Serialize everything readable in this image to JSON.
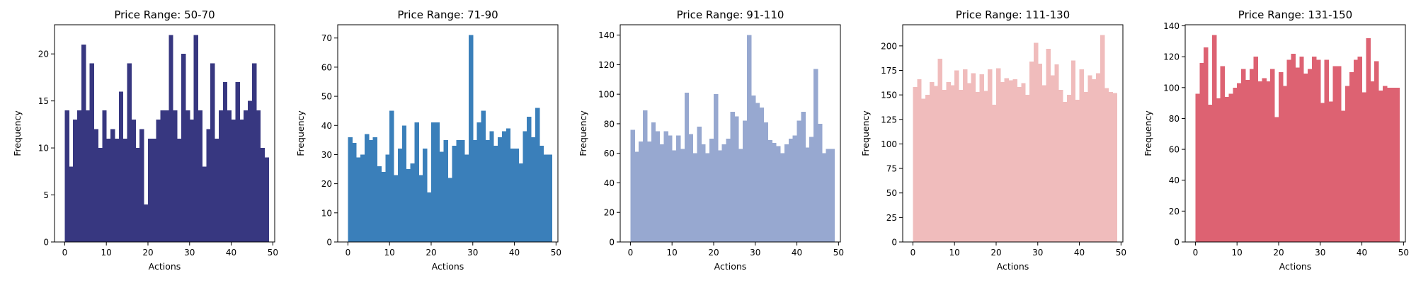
{
  "chart_data": [
    {
      "type": "bar",
      "title": "Price Range: 50-70",
      "xlabel": "Actions",
      "ylabel": "Frequency",
      "color": "#373780",
      "x": [
        0,
        1,
        2,
        3,
        4,
        5,
        6,
        7,
        8,
        9,
        10,
        11,
        12,
        13,
        14,
        15,
        16,
        17,
        18,
        19,
        20,
        21,
        22,
        23,
        24,
        25,
        26,
        27,
        28,
        29,
        30,
        31,
        32,
        33,
        34,
        35,
        36,
        37,
        38,
        39,
        40,
        41,
        42,
        43,
        44,
        45,
        46,
        47,
        48,
        49
      ],
      "values": [
        14,
        8,
        13,
        14,
        21,
        14,
        19,
        12,
        10,
        14,
        11,
        12,
        11,
        16,
        11,
        19,
        13,
        10,
        12,
        4,
        11,
        11,
        13,
        14,
        14,
        22,
        14,
        11,
        20,
        14,
        13,
        22,
        14,
        8,
        12,
        19,
        11,
        14,
        17,
        14,
        13,
        17,
        13,
        14,
        15,
        19,
        14,
        10,
        9,
        0
      ],
      "xlim": [
        -2.45,
        50.45
      ],
      "ylim": [
        0,
        23.1
      ],
      "xticks": [
        0,
        10,
        20,
        30,
        40,
        50
      ],
      "yticks": [
        0,
        5,
        10,
        15,
        20
      ]
    },
    {
      "type": "bar",
      "title": "Price Range: 71-90",
      "xlabel": "Actions",
      "ylabel": "Frequency",
      "color": "#3a7fba",
      "x": [
        0,
        1,
        2,
        3,
        4,
        5,
        6,
        7,
        8,
        9,
        10,
        11,
        12,
        13,
        14,
        15,
        16,
        17,
        18,
        19,
        20,
        21,
        22,
        23,
        24,
        25,
        26,
        27,
        28,
        29,
        30,
        31,
        32,
        33,
        34,
        35,
        36,
        37,
        38,
        39,
        40,
        41,
        42,
        43,
        44,
        45,
        46,
        47,
        48,
        49
      ],
      "values": [
        36,
        34,
        29,
        30,
        37,
        35,
        36,
        26,
        24,
        30,
        45,
        23,
        32,
        40,
        25,
        27,
        41,
        23,
        32,
        17,
        41,
        41,
        31,
        35,
        22,
        33,
        35,
        35,
        30,
        71,
        35,
        41,
        45,
        35,
        38,
        33,
        36,
        38,
        39,
        32,
        32,
        27,
        38,
        43,
        36,
        46,
        33,
        30,
        30,
        0
      ],
      "xlim": [
        -2.45,
        50.45
      ],
      "ylim": [
        0,
        74.55
      ],
      "xticks": [
        0,
        10,
        20,
        30,
        40,
        50
      ],
      "yticks": [
        0,
        10,
        20,
        30,
        40,
        50,
        60,
        70
      ]
    },
    {
      "type": "bar",
      "title": "Price Range: 91-110",
      "xlabel": "Actions",
      "ylabel": "Frequency",
      "color": "#97a8d0",
      "x": [
        0,
        1,
        2,
        3,
        4,
        5,
        6,
        7,
        8,
        9,
        10,
        11,
        12,
        13,
        14,
        15,
        16,
        17,
        18,
        19,
        20,
        21,
        22,
        23,
        24,
        25,
        26,
        27,
        28,
        29,
        30,
        31,
        32,
        33,
        34,
        35,
        36,
        37,
        38,
        39,
        40,
        41,
        42,
        43,
        44,
        45,
        46,
        47,
        48,
        49
      ],
      "values": [
        76,
        61,
        68,
        89,
        68,
        81,
        75,
        66,
        75,
        72,
        62,
        72,
        63,
        101,
        73,
        60,
        78,
        66,
        60,
        70,
        100,
        62,
        66,
        70,
        88,
        85,
        63,
        82,
        140,
        99,
        94,
        91,
        81,
        69,
        67,
        65,
        60,
        66,
        70,
        72,
        82,
        88,
        64,
        71,
        117,
        80,
        60,
        63,
        63,
        0
      ],
      "xlim": [
        -2.45,
        50.45
      ],
      "ylim": [
        0,
        147
      ],
      "xticks": [
        0,
        10,
        20,
        30,
        40,
        50
      ],
      "yticks": [
        0,
        20,
        40,
        60,
        80,
        100,
        120,
        140
      ]
    },
    {
      "type": "bar",
      "title": "Price Range: 111-130",
      "xlabel": "Actions",
      "ylabel": "Frequency",
      "color": "#f0bcbc",
      "x": [
        0,
        1,
        2,
        3,
        4,
        5,
        6,
        7,
        8,
        9,
        10,
        11,
        12,
        13,
        14,
        15,
        16,
        17,
        18,
        19,
        20,
        21,
        22,
        23,
        24,
        25,
        26,
        27,
        28,
        29,
        30,
        31,
        32,
        33,
        34,
        35,
        36,
        37,
        38,
        39,
        40,
        41,
        42,
        43,
        44,
        45,
        46,
        47,
        48,
        49
      ],
      "values": [
        158,
        166,
        146,
        150,
        163,
        159,
        187,
        155,
        163,
        160,
        175,
        155,
        176,
        162,
        172,
        153,
        171,
        154,
        176,
        140,
        177,
        163,
        167,
        165,
        166,
        158,
        162,
        150,
        184,
        203,
        182,
        160,
        197,
        170,
        181,
        155,
        143,
        150,
        185,
        145,
        176,
        153,
        170,
        166,
        172,
        211,
        157,
        153,
        152,
        0
      ],
      "xlim": [
        -2.45,
        50.45
      ],
      "ylim": [
        0,
        221.55
      ],
      "xticks": [
        0,
        10,
        20,
        30,
        40,
        50
      ],
      "yticks": [
        0,
        25,
        50,
        75,
        100,
        125,
        150,
        175,
        200
      ]
    },
    {
      "type": "bar",
      "title": "Price Range: 131-150",
      "xlabel": "Actions",
      "ylabel": "Frequency",
      "color": "#dd6272",
      "x": [
        0,
        1,
        2,
        3,
        4,
        5,
        6,
        7,
        8,
        9,
        10,
        11,
        12,
        13,
        14,
        15,
        16,
        17,
        18,
        19,
        20,
        21,
        22,
        23,
        24,
        25,
        26,
        27,
        28,
        29,
        30,
        31,
        32,
        33,
        34,
        35,
        36,
        37,
        38,
        39,
        40,
        41,
        42,
        43,
        44,
        45,
        46,
        47,
        48,
        49
      ],
      "values": [
        96,
        116,
        126,
        89,
        134,
        93,
        114,
        94,
        96,
        100,
        103,
        112,
        105,
        112,
        120,
        104,
        106,
        104,
        112,
        81,
        110,
        101,
        118,
        122,
        113,
        120,
        109,
        112,
        120,
        118,
        90,
        118,
        91,
        114,
        114,
        85,
        101,
        110,
        118,
        120,
        97,
        132,
        104,
        117,
        98,
        101,
        100,
        100,
        100,
        0
      ],
      "xlim": [
        -2.45,
        50.45
      ],
      "ylim": [
        0,
        140.7
      ],
      "xticks": [
        0,
        10,
        20,
        30,
        40,
        50
      ],
      "yticks": [
        0,
        20,
        40,
        60,
        80,
        100,
        120,
        140
      ]
    }
  ]
}
